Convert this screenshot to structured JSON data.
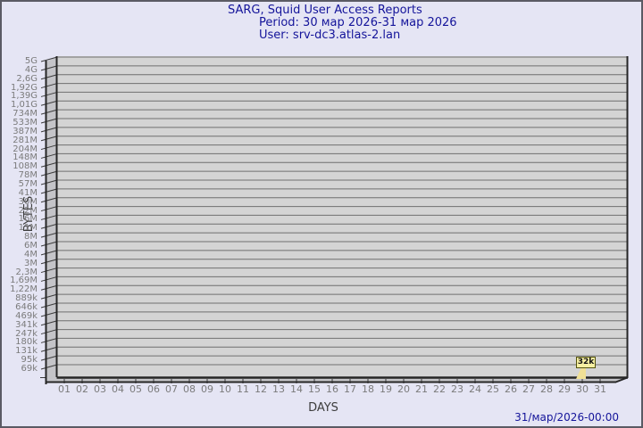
{
  "window": {
    "background": "#e5e5f4",
    "frame_color": "#5a5a64"
  },
  "header": {
    "title": "SARG, Squid User Access Reports",
    "period": "Period: 30 мар 2026-31 мар 2026",
    "user": "User: srv-dc3.atlas-2.lan",
    "text_color": "#14149a"
  },
  "y_axis": {
    "title": "BYTES",
    "title_color": "#3d3d3d",
    "label_color": "#7b7b7b",
    "tick_labels": [
      "5G",
      "4G",
      "2,6G",
      "1,92G",
      "1,39G",
      "1,01G",
      "734M",
      "533M",
      "387M",
      "281M",
      "204M",
      "148M",
      "108M",
      "78M",
      "57M",
      "41M",
      "30M",
      "22M",
      "16M",
      "11M",
      "8M",
      "6M",
      "4M",
      "3M",
      "2,3M",
      "1,69M",
      "1,22M",
      "889k",
      "646k",
      "469k",
      "341k",
      "247k",
      "180k",
      "131k",
      "95k",
      "69k"
    ]
  },
  "x_axis": {
    "title": "DAYS",
    "title_color": "#3d3d3d",
    "label_color": "#7b7b7b",
    "tick_labels": [
      "01",
      "02",
      "03",
      "04",
      "05",
      "06",
      "07",
      "08",
      "09",
      "10",
      "11",
      "12",
      "13",
      "14",
      "15",
      "16",
      "17",
      "18",
      "19",
      "20",
      "21",
      "22",
      "23",
      "24",
      "25",
      "26",
      "27",
      "28",
      "29",
      "30",
      "31"
    ]
  },
  "plot": {
    "area_fill": "#d4d4d4",
    "wall_fill": "#c4c4c8",
    "grid_color": "#6f6f6f",
    "edge_color": "#262626",
    "tick_color": "#3a3a3a"
  },
  "marker": {
    "label": "32k",
    "day": "30",
    "fill": "#f7f0a2",
    "border_color": "#52520f",
    "pointer_fill": "#f0e096",
    "text_color": "#141414"
  },
  "footer": {
    "timestamp": "31/мар/2026-00:00"
  },
  "chart_data": {
    "type": "bar",
    "title": "SARG, Squid User Access Reports",
    "subtitle": [
      "Period: 30 мар 2026-31 мар 2026",
      "User: srv-dc3.atlas-2.lan"
    ],
    "xlabel": "DAYS",
    "ylabel": "BYTES",
    "categories": [
      "01",
      "02",
      "03",
      "04",
      "05",
      "06",
      "07",
      "08",
      "09",
      "10",
      "11",
      "12",
      "13",
      "14",
      "15",
      "16",
      "17",
      "18",
      "19",
      "20",
      "21",
      "22",
      "23",
      "24",
      "25",
      "26",
      "27",
      "28",
      "29",
      "30",
      "31"
    ],
    "values": [
      0,
      0,
      0,
      0,
      0,
      0,
      0,
      0,
      0,
      0,
      0,
      0,
      0,
      0,
      0,
      0,
      0,
      0,
      0,
      0,
      0,
      0,
      0,
      0,
      0,
      0,
      0,
      0,
      0,
      32768,
      0
    ],
    "data_labels": [
      {
        "category": "30",
        "label": "32k"
      }
    ],
    "y_tick_labels": [
      "5G",
      "4G",
      "2,6G",
      "1,92G",
      "1,39G",
      "1,01G",
      "734M",
      "533M",
      "387M",
      "281M",
      "204M",
      "148M",
      "108M",
      "78M",
      "57M",
      "41M",
      "30M",
      "22M",
      "16M",
      "11M",
      "8M",
      "6M",
      "4M",
      "3M",
      "2,3M",
      "1,69M",
      "1,22M",
      "889k",
      "646k",
      "469k",
      "341k",
      "247k",
      "180k",
      "131k",
      "95k",
      "69k"
    ],
    "y_scale": "nonlinear (SARG log-like)",
    "grid": "horizontal only",
    "legend": "none",
    "footer_timestamp": "31/мар/2026-00:00"
  }
}
